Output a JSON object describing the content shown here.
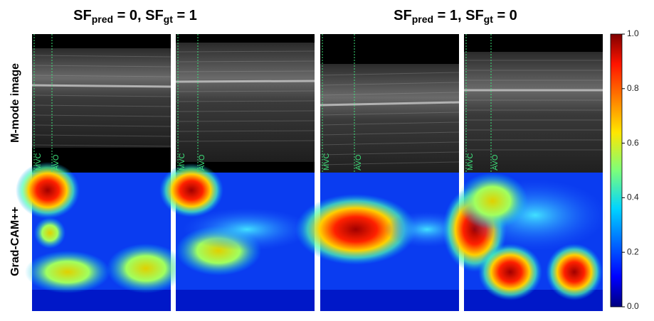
{
  "titles": [
    [
      "SF",
      "pred",
      " = 0,  SF",
      "gt",
      " = 1"
    ],
    [
      "SF",
      "pred",
      " = 1,  SF",
      "gt",
      " = 0"
    ]
  ],
  "row_labels": [
    "M-mode image",
    "Grad-CAM++"
  ],
  "panels": [
    {
      "markers": [
        "MVC",
        "AVO"
      ]
    },
    {
      "markers": [
        "MVC",
        "AVO"
      ]
    },
    {
      "markers": [
        "MVC",
        "AVO"
      ]
    },
    {
      "markers": [
        "MVC",
        "AVO"
      ]
    }
  ],
  "colorbar": {
    "lim": [
      0,
      1
    ],
    "ticks": [
      {
        "value": 0,
        "label": "0.0"
      },
      {
        "value": 0.2,
        "label": "0.2"
      },
      {
        "value": 0.4,
        "label": "0.4"
      },
      {
        "value": 0.6,
        "label": "0.6"
      },
      {
        "value": 0.8,
        "label": "0.8"
      },
      {
        "value": 1,
        "label": "1.0"
      }
    ]
  }
}
